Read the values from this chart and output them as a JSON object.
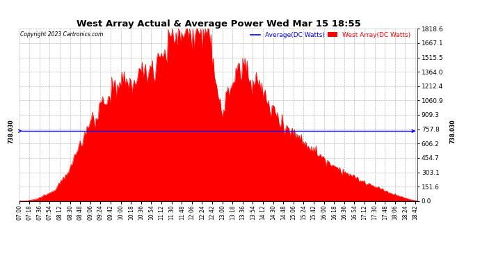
{
  "title": "West Array Actual & Average Power Wed Mar 15 18:55",
  "copyright": "Copyright 2023 Cartronics.com",
  "average_label": "Average(DC Watts)",
  "west_label": "West Array(DC Watts)",
  "average_value": 738.03,
  "y_ticks": [
    0.0,
    151.6,
    303.1,
    454.7,
    606.2,
    757.8,
    909.3,
    1060.9,
    1212.4,
    1364.0,
    1515.5,
    1667.1,
    1818.6
  ],
  "y_max": 1818.6,
  "y_min": 0.0,
  "background_color": "#ffffff",
  "fill_color": "#ff0000",
  "average_line_color": "#0000ff",
  "grid_color": "#aaaaaa",
  "title_color": "#000000",
  "average_label_color": "#0000ff",
  "west_label_color": "#ff0000",
  "left_avg_label": "738.030",
  "right_avg_label": "738.030",
  "figwidth": 6.9,
  "figheight": 3.75,
  "dpi": 100
}
